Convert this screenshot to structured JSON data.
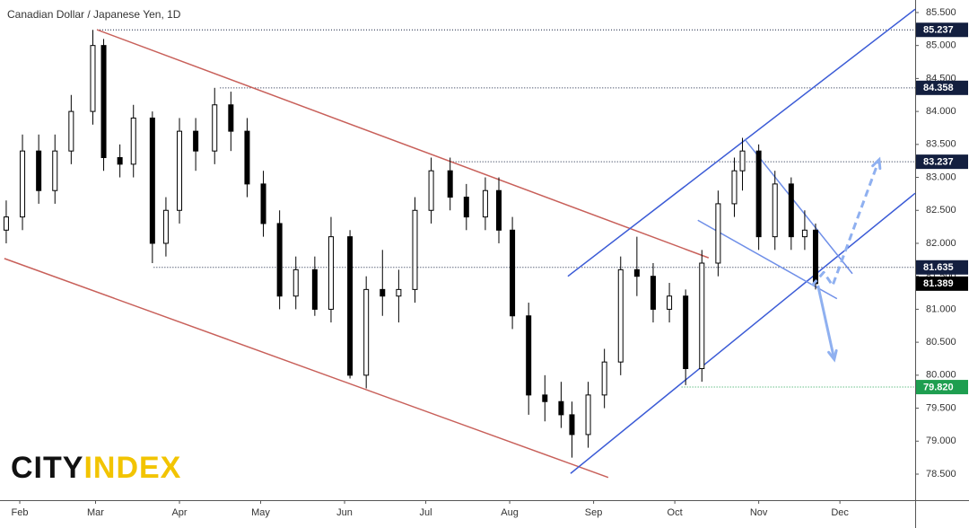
{
  "chart_data": {
    "type": "candlestick",
    "title": "Canadian Dollar / Japanese Yen, 1D",
    "watermark": [
      "CITY",
      "INDEX"
    ],
    "x": [
      26,
      32,
      38,
      44,
      50,
      58,
      62,
      68,
      73,
      80,
      85,
      90,
      96,
      103,
      109,
      115,
      121,
      127,
      133,
      140,
      146,
      153,
      159,
      165,
      171,
      177,
      183,
      190,
      196,
      203,
      208,
      213,
      219,
      225,
      231,
      235,
      241,
      247,
      253,
      259,
      265,
      271,
      277,
      283,
      289,
      295,
      298,
      304,
      310,
      316,
      321,
      325
    ],
    "open": [
      82.2,
      82.4,
      83.4,
      82.8,
      83.4,
      84.0,
      85.0,
      83.3,
      83.2,
      83.9,
      82.0,
      82.5,
      83.7,
      83.4,
      84.1,
      83.7,
      82.9,
      82.3,
      81.2,
      81.6,
      81.0,
      82.1,
      80.0,
      81.3,
      81.2,
      81.3,
      82.5,
      83.1,
      82.7,
      82.4,
      82.8,
      82.2,
      80.9,
      79.7,
      79.6,
      79.4,
      79.1,
      79.7,
      80.2,
      81.6,
      81.5,
      81.0,
      81.2,
      80.1,
      81.7,
      82.6,
      83.1,
      83.4,
      82.1,
      82.9,
      82.1,
      82.2
    ],
    "high": [
      82.65,
      83.65,
      83.65,
      83.65,
      84.25,
      85.237,
      85.1,
      83.5,
      84.1,
      84.0,
      82.7,
      83.9,
      83.9,
      84.358,
      84.3,
      83.9,
      83.1,
      82.5,
      81.8,
      81.8,
      82.4,
      82.2,
      81.5,
      81.9,
      81.6,
      82.7,
      83.3,
      83.3,
      82.9,
      83.0,
      83.0,
      82.4,
      81.1,
      80.0,
      79.9,
      79.6,
      79.9,
      80.4,
      81.8,
      82.1,
      81.7,
      81.4,
      81.3,
      81.9,
      82.8,
      83.3,
      83.6,
      83.5,
      83.1,
      83.0,
      82.5,
      82.3
    ],
    "low": [
      82.0,
      82.2,
      82.6,
      82.6,
      83.2,
      83.8,
      83.1,
      83.0,
      83.0,
      81.7,
      81.8,
      82.3,
      83.1,
      83.2,
      83.4,
      82.7,
      82.1,
      81.0,
      81.0,
      80.9,
      80.8,
      79.95,
      79.8,
      80.9,
      80.8,
      81.1,
      82.3,
      82.5,
      82.2,
      82.2,
      82.0,
      80.7,
      79.4,
      79.3,
      79.2,
      78.75,
      78.9,
      79.5,
      80.0,
      81.2,
      80.8,
      80.8,
      79.85,
      79.9,
      81.5,
      82.4,
      82.8,
      81.9,
      81.9,
      81.9,
      81.9,
      81.3
    ],
    "close": [
      82.4,
      83.4,
      82.8,
      83.4,
      84.0,
      85.0,
      83.3,
      83.2,
      83.9,
      82.0,
      82.5,
      83.7,
      83.4,
      84.1,
      83.7,
      82.9,
      82.3,
      81.2,
      81.6,
      81.0,
      82.1,
      80.0,
      81.3,
      81.2,
      81.3,
      82.5,
      83.1,
      82.7,
      82.4,
      82.8,
      82.2,
      80.9,
      79.7,
      79.6,
      79.4,
      79.1,
      79.7,
      80.2,
      81.6,
      81.5,
      81.0,
      81.2,
      80.1,
      81.7,
      82.6,
      83.1,
      83.4,
      82.1,
      82.9,
      82.1,
      82.2,
      81.389
    ],
    "up_color": "#ffffff",
    "down_color": "#000000",
    "xlim": [
      23.7,
      361.8
    ],
    "xticks": [
      {
        "value": 31,
        "label": "Feb"
      },
      {
        "value": 59,
        "label": "Mar"
      },
      {
        "value": 90,
        "label": "Apr"
      },
      {
        "value": 120,
        "label": "May"
      },
      {
        "value": 151,
        "label": "Jun"
      },
      {
        "value": 181,
        "label": "Jul"
      },
      {
        "value": 212,
        "label": "Aug"
      },
      {
        "value": 243,
        "label": "Sep"
      },
      {
        "value": 273,
        "label": "Oct"
      },
      {
        "value": 304,
        "label": "Nov"
      },
      {
        "value": 334,
        "label": "Dec"
      }
    ],
    "ylim": [
      78.105,
      85.69
    ],
    "yticks": [
      {
        "value": 78.5,
        "label": "78.500"
      },
      {
        "value": 79,
        "label": "79.000"
      },
      {
        "value": 79.5,
        "label": "79.500"
      },
      {
        "value": 80,
        "label": "80.000"
      },
      {
        "value": 80.5,
        "label": "80.500"
      },
      {
        "value": 81,
        "label": "81.000"
      },
      {
        "value": 81.5,
        "label": "81.500"
      },
      {
        "value": 82,
        "label": "82.000"
      },
      {
        "value": 82.5,
        "label": "82.500"
      },
      {
        "value": 83,
        "label": "83.000"
      },
      {
        "value": 83.5,
        "label": "83.500"
      },
      {
        "value": 84,
        "label": "84.000"
      },
      {
        "value": 84.5,
        "label": "84.500"
      },
      {
        "value": 85,
        "label": "85.000"
      },
      {
        "value": 85.5,
        "label": "85.500"
      }
    ],
    "levels": [
      {
        "value": 85.237,
        "label": "85.237",
        "color": "#131f3f",
        "start": 59.5
      },
      {
        "value": 84.358,
        "label": "84.358",
        "color": "#131f3f",
        "start": 105
      },
      {
        "value": 83.237,
        "label": "83.237",
        "color": "#131f3f",
        "start": 191
      },
      {
        "value": 81.635,
        "label": "81.635",
        "color": "#131f3f",
        "start": 80.5
      },
      {
        "value": 81.389,
        "label": "81.389",
        "color": "#000000"
      },
      {
        "value": 79.82,
        "label": "79.820",
        "color": "#1e9e50",
        "start": 275.5
      }
    ],
    "trendlines": [
      {
        "color": "#c8605a",
        "points": [
          [
            59.5,
            85.24
          ],
          [
            285.5,
            81.78
          ]
        ]
      },
      {
        "color": "#c8605a",
        "points": [
          [
            25.3,
            81.77
          ],
          [
            248.4,
            78.45
          ]
        ]
      },
      {
        "color": "#3b5bd6",
        "points": [
          [
            234.5,
            78.51
          ],
          [
            361.8,
            82.76
          ]
        ]
      },
      {
        "color": "#3b5bd6",
        "points": [
          [
            233.5,
            81.5
          ],
          [
            361.8,
            85.55
          ]
        ]
      },
      {
        "color": "#6f8fe8",
        "points": [
          [
            298.8,
            83.58
          ],
          [
            338.6,
            81.54
          ]
        ]
      },
      {
        "color": "#6f8fe8",
        "points": [
          [
            281.5,
            82.35
          ],
          [
            332.9,
            81.16
          ]
        ]
      }
    ],
    "arrows": [
      {
        "color": "#8fb0f0",
        "dashed": false,
        "points": [
          [
            325.9,
            81.36
          ],
          [
            331.9,
            80.24
          ]
        ]
      },
      {
        "color": "#8fb0f0",
        "dashed": true,
        "points": [
          [
            323.7,
            81.36
          ],
          [
            328.0,
            81.56
          ],
          [
            331.3,
            81.36
          ],
          [
            348.5,
            83.27
          ]
        ]
      }
    ]
  }
}
